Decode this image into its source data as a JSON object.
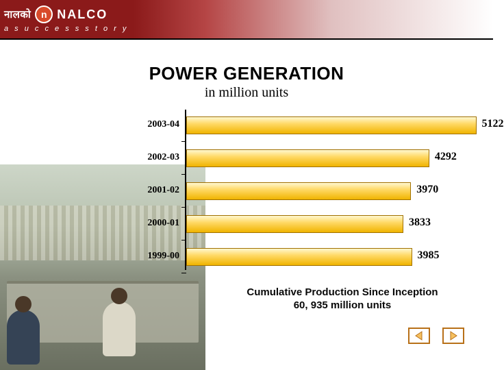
{
  "header": {
    "logo_hindi": "नालको",
    "logo_letter": "n",
    "logo_text": "NALCO",
    "tagline": "a  s u c c e s s   s t o r y",
    "bg_color": "#8b1a1a"
  },
  "title": "POWER GENERATION",
  "subtitle": "in million units",
  "chart": {
    "type": "bar-horizontal",
    "x_max": 5200,
    "bar_color_gradient": [
      "#fff8d0",
      "#ffd966",
      "#f0b400"
    ],
    "bar_border": "#a07000",
    "label_font": "Times New Roman",
    "label_fontsize": 14,
    "value_fontsize": 16,
    "rows": [
      {
        "label": "2003-04",
        "value": 5122
      },
      {
        "label": "2002-03",
        "value": 4292
      },
      {
        "label": "2001-02",
        "value": 3970
      },
      {
        "label": "2000-01",
        "value": 3833
      },
      {
        "label": "1999-00",
        "value": 3985
      }
    ]
  },
  "caption_line1": "Cumulative Production Since Inception",
  "caption_line2": "60, 935 million units",
  "nav": {
    "prev_icon": "triangle-left",
    "next_icon": "triangle-right",
    "stroke": "#b87018",
    "fill": "#f5c060"
  }
}
